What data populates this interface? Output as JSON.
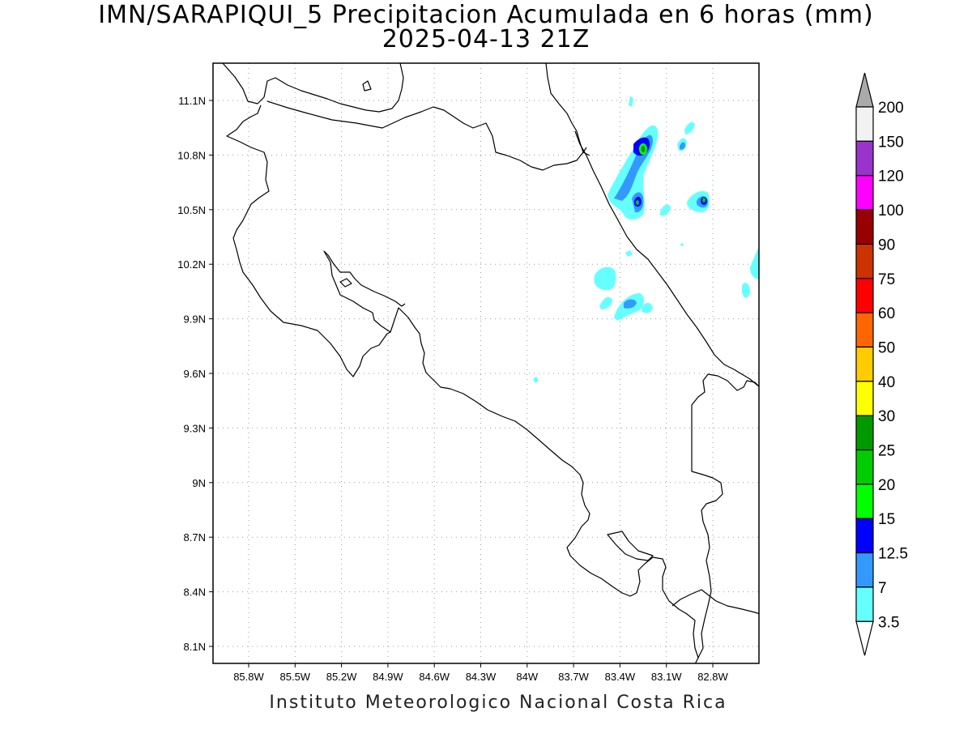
{
  "title": {
    "line1": "IMN/SARAPIQUI_5 Precipitacion Acumulada en 6 horas (mm)",
    "line2": "2025-04-13 21Z"
  },
  "footer": "Instituto Meteorologico Nacional Costa Rica",
  "map": {
    "lat_labels": [
      "11.1N",
      "10.8N",
      "10.5N",
      "10.2N",
      "9.9N",
      "9.6N",
      "9.3N",
      "9N",
      "8.7N",
      "8.4N",
      "8.1N"
    ],
    "lon_labels": [
      "85.8W",
      "85.5W",
      "85.2W",
      "84.9W",
      "84.6W",
      "84.3W",
      "84W",
      "83.7W",
      "83.4W",
      "83.1W",
      "82.8W"
    ],
    "grid": "dotted"
  },
  "colorbar": {
    "labels": [
      "200",
      "150",
      "120",
      "100",
      "90",
      "75",
      "60",
      "50",
      "40",
      "30",
      "25",
      "20",
      "15",
      "12.5",
      "7",
      "3.5"
    ],
    "colors": [
      "#f2f2f2",
      "#9933cc",
      "#ff00ff",
      "#990000",
      "#cc3300",
      "#ff0000",
      "#ff6600",
      "#ffcc00",
      "#ffff00",
      "#009900",
      "#00cc00",
      "#00ff00",
      "#0000ff",
      "#3399ff",
      "#66ffff"
    ],
    "top_arrow_color": "#aaaaaa",
    "bottom_arrow_color": "#ffffff"
  },
  "precip_colors": {
    "c35": "#66ffff",
    "c7": "#3399ff",
    "c125": "#0000ff",
    "c15": "#00ff00",
    "c25": "#00cc00",
    "c30": "#009900"
  }
}
